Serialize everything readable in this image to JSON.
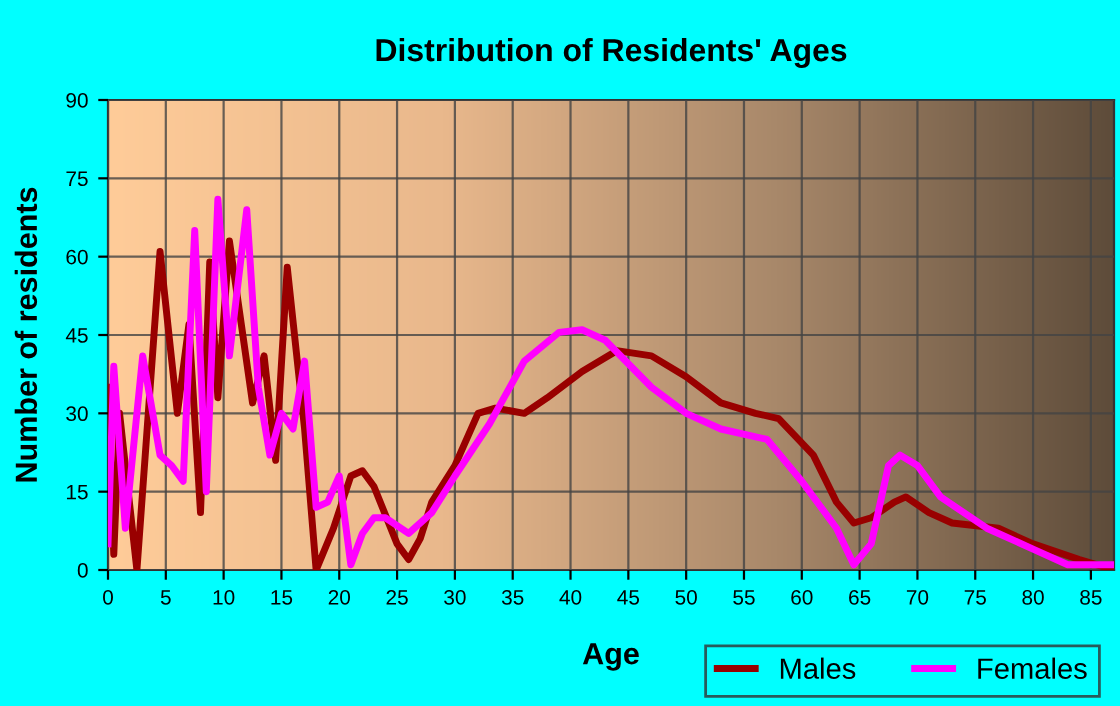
{
  "chart_data": {
    "type": "line",
    "title": "Distribution of Residents' Ages",
    "xlabel": "Age",
    "ylabel": "Number of residents",
    "xlim": [
      0,
      87
    ],
    "xticks": [
      0,
      5,
      10,
      15,
      20,
      25,
      30,
      35,
      40,
      45,
      50,
      55,
      60,
      65,
      70,
      75,
      80,
      85
    ],
    "ylim": [
      0,
      90
    ],
    "yticks": [
      0,
      15,
      30,
      45,
      60,
      75,
      90
    ],
    "grid": true,
    "legend": "bottom right",
    "marker": "none",
    "line_style": "solid",
    "series": [
      {
        "name": "Males",
        "color": "#990000",
        "x": [
          0,
          0.5,
          1,
          2.5,
          4.5,
          6,
          7,
          8,
          8.8,
          9.5,
          10.5,
          12.5,
          13.5,
          14.5,
          15.5,
          17,
          18,
          19.5,
          21,
          22,
          23,
          25,
          26,
          27,
          28,
          30,
          32,
          33.5,
          36,
          38,
          41,
          44,
          47,
          50,
          53,
          56,
          58,
          61,
          63,
          64.5,
          66,
          68,
          69,
          71,
          73,
          77,
          80,
          84,
          87
        ],
        "values": [
          35,
          3,
          30,
          0,
          61,
          30,
          47,
          11,
          59,
          33,
          63,
          32,
          41,
          21,
          58,
          27,
          0,
          8,
          18,
          19,
          16,
          5,
          2,
          6,
          13,
          20,
          30,
          31,
          30,
          33,
          38,
          42,
          41,
          37,
          32,
          30,
          29,
          22,
          13,
          9,
          10,
          13,
          14,
          11,
          9,
          8,
          5,
          2,
          0
        ]
      },
      {
        "name": "Females",
        "color": "#ff00ff",
        "x": [
          0,
          0.5,
          1.5,
          3,
          4.5,
          5.5,
          6.5,
          7.5,
          8.5,
          9.5,
          10.5,
          12,
          13,
          14,
          15,
          16,
          17,
          18,
          19,
          20,
          21,
          22,
          23,
          24,
          26,
          28,
          30,
          33,
          36,
          39,
          41,
          43,
          47,
          50,
          53,
          57,
          60,
          63,
          64.5,
          66,
          67.5,
          68.5,
          70,
          72,
          76,
          80,
          83,
          87
        ],
        "values": [
          5,
          39,
          8,
          41,
          22,
          20,
          17,
          65,
          15,
          71,
          41,
          69,
          35,
          22,
          30,
          27,
          40,
          12,
          13,
          18,
          1,
          7,
          10,
          10,
          7,
          11,
          18,
          28,
          40,
          45.5,
          46,
          44,
          35,
          30,
          27,
          25,
          17,
          8,
          1,
          5,
          20,
          22,
          20,
          14,
          8,
          4,
          1,
          1
        ]
      }
    ]
  }
}
